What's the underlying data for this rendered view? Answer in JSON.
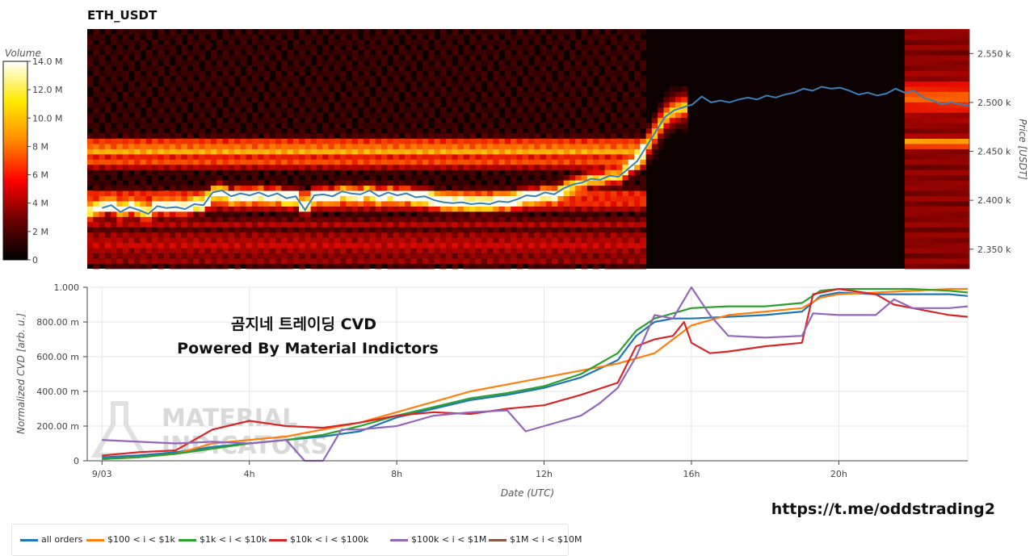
{
  "chart_data": [
    {
      "type": "heatmap",
      "title": "ETH_USDT",
      "ylabel": "Price [USDT]",
      "ylim": [
        2330,
        2575
      ],
      "yticks": [
        "2.350 k",
        "2.400 k",
        "2.450 k",
        "2.500 k",
        "2.550 k"
      ],
      "colorbar": {
        "label": "Volume",
        "ticks": [
          "0",
          "2 M",
          "4 M",
          "6 M",
          "8 M",
          "10.0 M",
          "12.0 M",
          "14.0 M"
        ],
        "range": [
          0,
          14
        ]
      },
      "price_series": [
        [
          0,
          2392
        ],
        [
          0.25,
          2395
        ],
        [
          0.5,
          2388
        ],
        [
          0.75,
          2393
        ],
        [
          1,
          2390
        ],
        [
          1.25,
          2386
        ],
        [
          1.5,
          2394
        ],
        [
          1.75,
          2392
        ],
        [
          2,
          2393
        ],
        [
          2.25,
          2391
        ],
        [
          2.5,
          2396
        ],
        [
          2.75,
          2395
        ],
        [
          3,
          2408
        ],
        [
          3.25,
          2410
        ],
        [
          3.5,
          2404
        ],
        [
          3.75,
          2407
        ],
        [
          4,
          2405
        ],
        [
          4.25,
          2408
        ],
        [
          4.5,
          2404
        ],
        [
          4.75,
          2407
        ],
        [
          5,
          2402
        ],
        [
          5.25,
          2404
        ],
        [
          5.5,
          2390
        ],
        [
          5.75,
          2405
        ],
        [
          6,
          2406
        ],
        [
          6.25,
          2404
        ],
        [
          6.5,
          2409
        ],
        [
          6.75,
          2407
        ],
        [
          7,
          2406
        ],
        [
          7.25,
          2410
        ],
        [
          7.5,
          2404
        ],
        [
          7.75,
          2408
        ],
        [
          8,
          2405
        ],
        [
          8.25,
          2407
        ],
        [
          8.5,
          2403
        ],
        [
          8.75,
          2404
        ],
        [
          9,
          2400
        ],
        [
          9.25,
          2398
        ],
        [
          9.5,
          2397
        ],
        [
          9.75,
          2398
        ],
        [
          10,
          2396
        ],
        [
          10.25,
          2397
        ],
        [
          10.5,
          2396
        ],
        [
          10.75,
          2399
        ],
        [
          11,
          2398
        ],
        [
          11.25,
          2401
        ],
        [
          11.5,
          2405
        ],
        [
          11.75,
          2404
        ],
        [
          12,
          2408
        ],
        [
          12.25,
          2406
        ],
        [
          12.5,
          2412
        ],
        [
          12.75,
          2416
        ],
        [
          13,
          2418
        ],
        [
          13.25,
          2422
        ],
        [
          13.5,
          2421
        ],
        [
          13.75,
          2425
        ],
        [
          14,
          2424
        ],
        [
          14.25,
          2432
        ],
        [
          14.5,
          2440
        ],
        [
          14.75,
          2455
        ],
        [
          15,
          2470
        ],
        [
          15.25,
          2485
        ],
        [
          15.5,
          2492
        ],
        [
          15.75,
          2495
        ],
        [
          16,
          2498
        ],
        [
          16.25,
          2506
        ],
        [
          16.5,
          2500
        ],
        [
          16.75,
          2502
        ],
        [
          17,
          2500
        ],
        [
          17.25,
          2503
        ],
        [
          17.5,
          2505
        ],
        [
          17.75,
          2503
        ],
        [
          18,
          2507
        ],
        [
          18.25,
          2505
        ],
        [
          18.5,
          2508
        ],
        [
          18.75,
          2510
        ],
        [
          19,
          2514
        ],
        [
          19.25,
          2512
        ],
        [
          19.5,
          2516
        ],
        [
          19.75,
          2514
        ],
        [
          20,
          2515
        ],
        [
          20.25,
          2512
        ],
        [
          20.5,
          2508
        ],
        [
          20.75,
          2510
        ],
        [
          21,
          2507
        ],
        [
          21.25,
          2509
        ],
        [
          21.5,
          2514
        ],
        [
          21.75,
          2510
        ],
        [
          22,
          2512
        ],
        [
          22.25,
          2505
        ],
        [
          22.5,
          2502
        ],
        [
          22.75,
          2498
        ],
        [
          23,
          2500
        ],
        [
          23.25,
          2498
        ],
        [
          23.5,
          2497
        ]
      ]
    },
    {
      "type": "line",
      "xlabel": "Date (UTC)",
      "ylabel": "Normalized CVD [arb. u.]",
      "ylim": [
        0,
        1
      ],
      "xlim": [
        -0.4,
        23.5
      ],
      "yticks": [
        "0",
        "200.00 m",
        "400.00 m",
        "600.00 m",
        "800.00 m",
        "1.000"
      ],
      "xticks": [
        {
          "value": 0,
          "label": "9/03"
        },
        {
          "value": 4,
          "label": "4h"
        },
        {
          "value": 8,
          "label": "8h"
        },
        {
          "value": 12,
          "label": "12h"
        },
        {
          "value": 16,
          "label": "16h"
        },
        {
          "value": 20,
          "label": "20h"
        }
      ],
      "series": [
        {
          "name": "all orders",
          "color": "#1f77b4",
          "points": [
            [
              0,
              0.02
            ],
            [
              1,
              0.03
            ],
            [
              2,
              0.05
            ],
            [
              3,
              0.08
            ],
            [
              4,
              0.1
            ],
            [
              5,
              0.12
            ],
            [
              6,
              0.14
            ],
            [
              7,
              0.17
            ],
            [
              8,
              0.25
            ],
            [
              9,
              0.3
            ],
            [
              10,
              0.35
            ],
            [
              11,
              0.38
            ],
            [
              12,
              0.42
            ],
            [
              13,
              0.48
            ],
            [
              14,
              0.58
            ],
            [
              14.5,
              0.72
            ],
            [
              15,
              0.8
            ],
            [
              15.5,
              0.82
            ],
            [
              16,
              0.82
            ],
            [
              17,
              0.83
            ],
            [
              18,
              0.84
            ],
            [
              19,
              0.86
            ],
            [
              19.5,
              0.95
            ],
            [
              20,
              0.97
            ],
            [
              21,
              0.96
            ],
            [
              22,
              0.96
            ],
            [
              23,
              0.96
            ],
            [
              23.5,
              0.95
            ]
          ]
        },
        {
          "name": "$100 < i < $1k",
          "color": "#ff7f0e",
          "points": [
            [
              0,
              0.01
            ],
            [
              1,
              0.02
            ],
            [
              2,
              0.04
            ],
            [
              3,
              0.1
            ],
            [
              4,
              0.12
            ],
            [
              5,
              0.14
            ],
            [
              6,
              0.18
            ],
            [
              7,
              0.22
            ],
            [
              8,
              0.28
            ],
            [
              9,
              0.34
            ],
            [
              10,
              0.4
            ],
            [
              11,
              0.44
            ],
            [
              12,
              0.48
            ],
            [
              13,
              0.52
            ],
            [
              14,
              0.56
            ],
            [
              15,
              0.62
            ],
            [
              15.5,
              0.7
            ],
            [
              16,
              0.78
            ],
            [
              17,
              0.84
            ],
            [
              18,
              0.86
            ],
            [
              19,
              0.88
            ],
            [
              19.5,
              0.94
            ],
            [
              20,
              0.96
            ],
            [
              21,
              0.97
            ],
            [
              22,
              0.98
            ],
            [
              23,
              0.99
            ],
            [
              23.5,
              0.99
            ]
          ]
        },
        {
          "name": "$1k < i < $10k",
          "color": "#2ca02c",
          "points": [
            [
              0,
              0.01
            ],
            [
              1,
              0.02
            ],
            [
              2,
              0.04
            ],
            [
              3,
              0.07
            ],
            [
              4,
              0.1
            ],
            [
              5,
              0.12
            ],
            [
              6,
              0.15
            ],
            [
              7,
              0.2
            ],
            [
              8,
              0.26
            ],
            [
              9,
              0.31
            ],
            [
              10,
              0.36
            ],
            [
              11,
              0.39
            ],
            [
              12,
              0.43
            ],
            [
              13,
              0.5
            ],
            [
              14,
              0.62
            ],
            [
              14.5,
              0.75
            ],
            [
              15,
              0.82
            ],
            [
              15.5,
              0.85
            ],
            [
              16,
              0.88
            ],
            [
              17,
              0.89
            ],
            [
              18,
              0.89
            ],
            [
              19,
              0.91
            ],
            [
              19.5,
              0.98
            ],
            [
              20,
              0.99
            ],
            [
              21,
              0.99
            ],
            [
              22,
              0.99
            ],
            [
              23,
              0.98
            ],
            [
              23.5,
              0.97
            ]
          ]
        },
        {
          "name": "$10k < i < $100k",
          "color": "#d62728",
          "points": [
            [
              0,
              0.03
            ],
            [
              1,
              0.05
            ],
            [
              2,
              0.06
            ],
            [
              3,
              0.18
            ],
            [
              4,
              0.23
            ],
            [
              5,
              0.2
            ],
            [
              6,
              0.19
            ],
            [
              7,
              0.22
            ],
            [
              8,
              0.26
            ],
            [
              9,
              0.28
            ],
            [
              10,
              0.27
            ],
            [
              11,
              0.3
            ],
            [
              12,
              0.32
            ],
            [
              13,
              0.38
            ],
            [
              14,
              0.45
            ],
            [
              14.5,
              0.66
            ],
            [
              15,
              0.7
            ],
            [
              15.5,
              0.72
            ],
            [
              15.8,
              0.8
            ],
            [
              16,
              0.68
            ],
            [
              16.5,
              0.62
            ],
            [
              17,
              0.63
            ],
            [
              18,
              0.66
            ],
            [
              19,
              0.68
            ],
            [
              19.3,
              0.96
            ],
            [
              20,
              0.99
            ],
            [
              21,
              0.96
            ],
            [
              21.5,
              0.9
            ],
            [
              22,
              0.88
            ],
            [
              23,
              0.84
            ],
            [
              23.5,
              0.83
            ]
          ]
        },
        {
          "name": "$100k < i < $1M",
          "color": "#9467bd",
          "points": [
            [
              0,
              0.12
            ],
            [
              1,
              0.11
            ],
            [
              2,
              0.1
            ],
            [
              3,
              0.11
            ],
            [
              4,
              0.1
            ],
            [
              5,
              0.12
            ],
            [
              5.5,
              0.0
            ],
            [
              6,
              0.0
            ],
            [
              6.5,
              0.18
            ],
            [
              7,
              0.18
            ],
            [
              8,
              0.2
            ],
            [
              9,
              0.26
            ],
            [
              10,
              0.28
            ],
            [
              11,
              0.29
            ],
            [
              11.5,
              0.17
            ],
            [
              12,
              0.2
            ],
            [
              13,
              0.26
            ],
            [
              13.5,
              0.33
            ],
            [
              14,
              0.42
            ],
            [
              14.5,
              0.6
            ],
            [
              15,
              0.84
            ],
            [
              15.5,
              0.82
            ],
            [
              16,
              1.0
            ],
            [
              16.5,
              0.84
            ],
            [
              17,
              0.72
            ],
            [
              18,
              0.71
            ],
            [
              19,
              0.72
            ],
            [
              19.3,
              0.85
            ],
            [
              20,
              0.84
            ],
            [
              21,
              0.84
            ],
            [
              21.5,
              0.93
            ],
            [
              22,
              0.88
            ],
            [
              23,
              0.88
            ],
            [
              23.5,
              0.89
            ]
          ]
        },
        {
          "name": "$1M < i < $10M",
          "color": "#8c564b",
          "points": []
        }
      ]
    }
  ],
  "annotation": {
    "line1": "곰지네 트레이딩 CVD",
    "line2": "Powered By Material Indictors"
  },
  "watermark": {
    "line1": "MATERIAL",
    "line2": "INDICATORS"
  },
  "url_text": "https://t.me/oddstrading2"
}
